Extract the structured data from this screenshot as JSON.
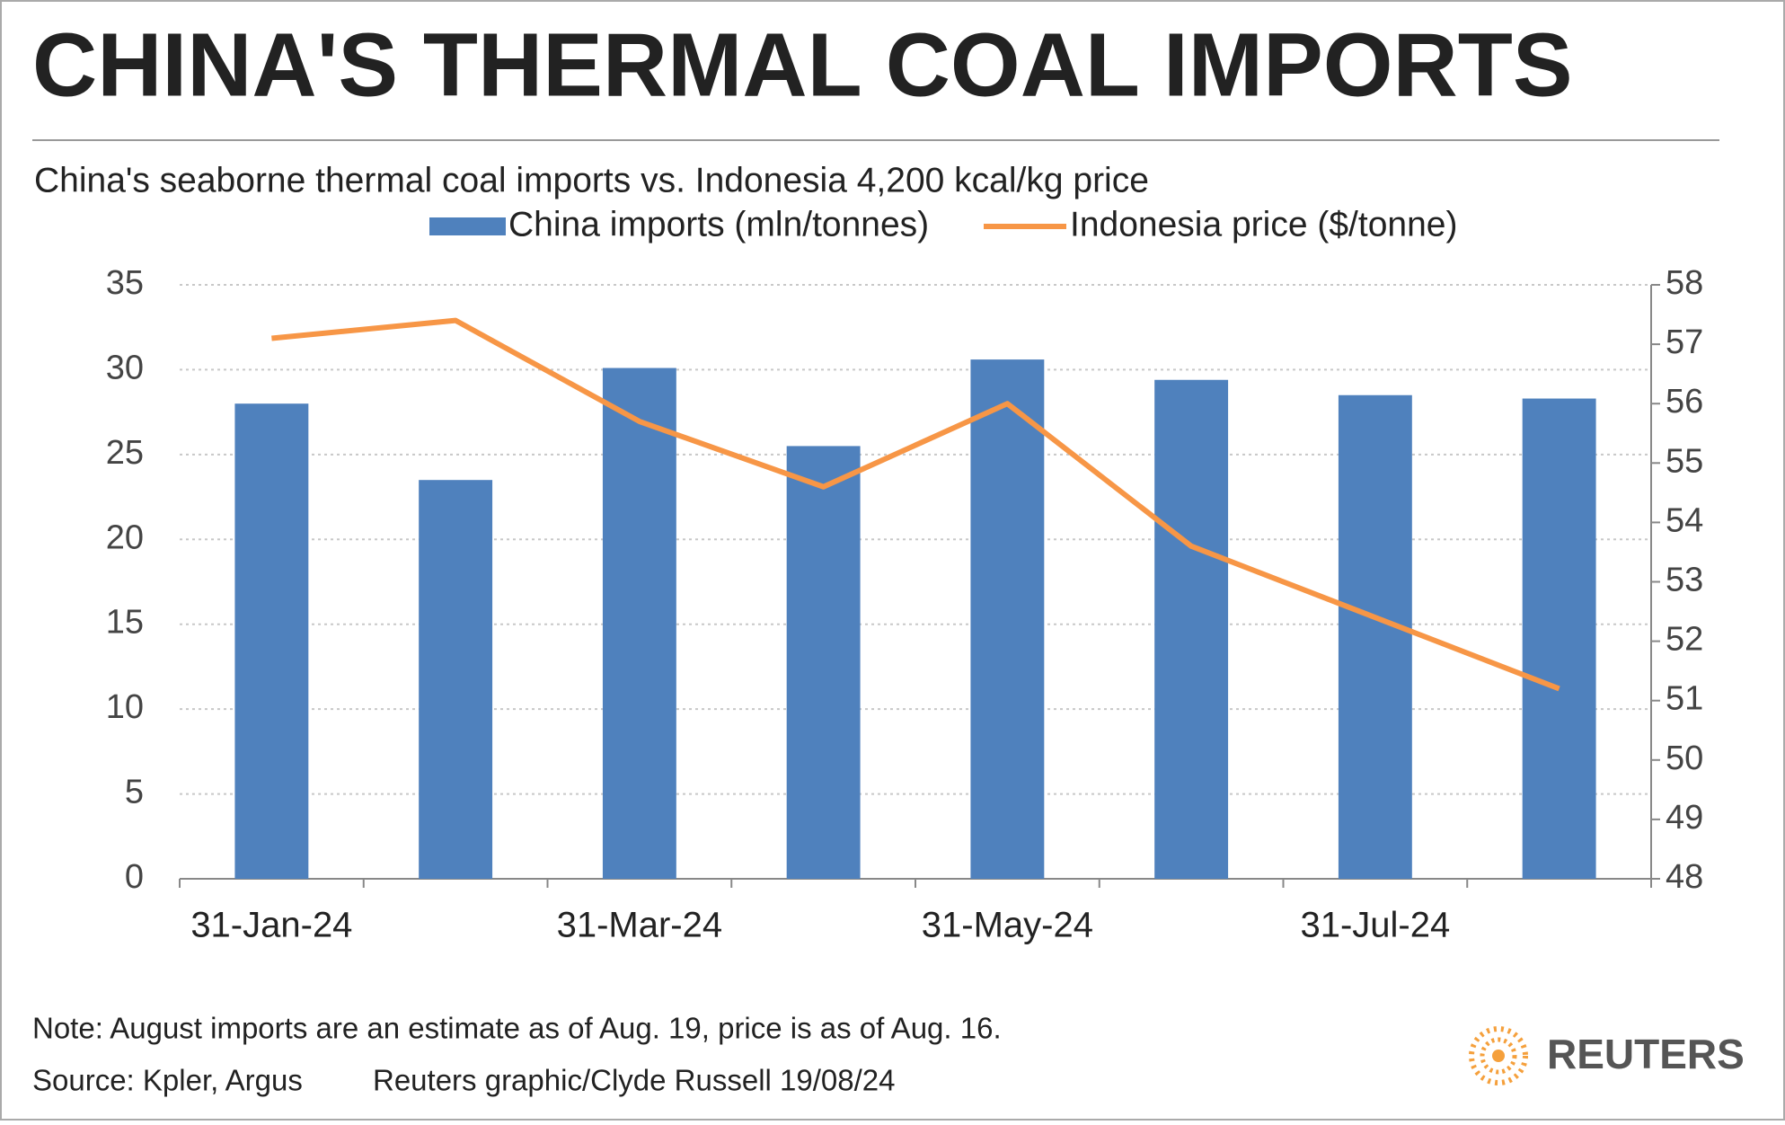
{
  "chart_data": {
    "type": "bar",
    "title": "CHINA'S THERMAL COAL IMPORTS",
    "subtitle": "China's seaborne thermal coal imports vs. Indonesia 4,200 kcal/kg price",
    "categories": [
      "31-Jan-24",
      null,
      "31-Mar-24",
      null,
      "31-May-24",
      null,
      "31-Jul-24",
      null
    ],
    "series": [
      {
        "name": "China imports (mln/tonnes)",
        "type": "bar",
        "color": "#4f81bd",
        "values": [
          28,
          23.5,
          30.1,
          25.5,
          30.6,
          29.4,
          28.5,
          28.3
        ]
      },
      {
        "name": "Indonesia price ($/tonne)",
        "type": "line",
        "axis": "y2",
        "color": "#f79646",
        "values": [
          57.1,
          57.4,
          55.7,
          54.6,
          56.0,
          53.6,
          52.4,
          51.2
        ]
      }
    ],
    "ylim": [
      0,
      35
    ],
    "yticks": [
      0,
      5,
      10,
      15,
      20,
      25,
      30,
      35
    ],
    "y2lim": [
      48,
      58
    ],
    "y2ticks": [
      48,
      49,
      50,
      51,
      52,
      53,
      54,
      55,
      56,
      57,
      58
    ],
    "grid": true,
    "legend": "top",
    "note": "Note: August imports are an estimate as of Aug. 19, price is as of Aug. 16.",
    "source": "Source: Kpler, Argus",
    "credit": "Reuters graphic/Clyde Russell 19/08/24",
    "brand": "REUTERS"
  }
}
